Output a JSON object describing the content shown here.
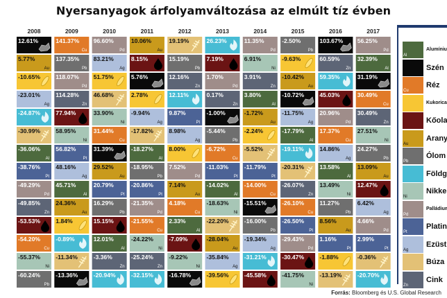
{
  "title": "Nyersanyagok árfolyamváltozása az elmúlt tíz évben",
  "source_label": "Forrás:",
  "source_text": "Bloomberg és U.S. Global Research",
  "commodities": {
    "Al": {
      "name": "Alumínium",
      "color": "#4d6a3e",
      "text": "#ffffff",
      "icon": "none"
    },
    "C": {
      "name": "Szén",
      "color": "#0a0a0a",
      "text": "#ffffff",
      "icon": "coal-icon"
    },
    "Cu": {
      "name": "Réz",
      "color": "#e17a28",
      "text": "#ffffff",
      "icon": "none"
    },
    "Co": {
      "name": "Kukorica",
      "color": "#f7c634",
      "text": "#111111",
      "icon": "corn-icon"
    },
    "Oil": {
      "name": "Kőolaj",
      "color": "#6b1414",
      "text": "#ffffff",
      "icon": "oil-drop-icon"
    },
    "Au": {
      "name": "Arany",
      "color": "#c99a1c",
      "text": "#111111",
      "icon": "none"
    },
    "Pb": {
      "name": "Ólom",
      "color": "#6f6f6f",
      "text": "#ffffff",
      "icon": "none"
    },
    "Gas": {
      "name": "Földgáz",
      "color": "#47bcd4",
      "text": "#ffffff",
      "icon": "flame-icon"
    },
    "Ni": {
      "name": "Nikkel",
      "color": "#a7c6b6",
      "text": "#111111",
      "icon": "none"
    },
    "Pd": {
      "name": "Palládium",
      "color": "#9f8d8a",
      "text": "#ffffff",
      "icon": "none"
    },
    "Pt": {
      "name": "Platina",
      "color": "#4c6396",
      "text": "#ffffff",
      "icon": "none"
    },
    "Ag": {
      "name": "Ezüst",
      "color": "#aebfdc",
      "text": "#111111",
      "icon": "none"
    },
    "W": {
      "name": "Búza",
      "color": "#e3c176",
      "text": "#111111",
      "icon": "wheat-icon"
    },
    "Zn": {
      "name": "Cink",
      "color": "#5d6576",
      "text": "#ffffff",
      "icon": "none"
    }
  },
  "legend_order": [
    "Al",
    "C",
    "Cu",
    "Co",
    "Oil",
    "Au",
    "Pb",
    "Gas",
    "Ni",
    "Pd",
    "Pt",
    "Ag",
    "W",
    "Zn"
  ],
  "chart_data": {
    "type": "table",
    "title": "Nyersanyagok árfolyamváltozása az elmúlt tíz évben",
    "years": [
      "2008",
      "2009",
      "2010",
      "2011",
      "2012",
      "2013",
      "2014",
      "2015",
      "2016",
      "2017"
    ],
    "columns": [
      {
        "year": "2008",
        "cells": [
          {
            "c": "C",
            "v": "12.61%"
          },
          {
            "c": "Au",
            "v": "5.77%"
          },
          {
            "c": "Co",
            "v": "-10.65%"
          },
          {
            "c": "Ag",
            "v": "-23.01%"
          },
          {
            "c": "Gas",
            "v": "-24.87%"
          },
          {
            "c": "W",
            "v": "-30.99%"
          },
          {
            "c": "Al",
            "v": "-36.06%"
          },
          {
            "c": "Pt",
            "v": "-38.76%"
          },
          {
            "c": "Pd",
            "v": "-49.29%"
          },
          {
            "c": "Zn",
            "v": "-49.85%"
          },
          {
            "c": "Oil",
            "v": "-53.53%"
          },
          {
            "c": "Cu",
            "v": "-54.20%"
          },
          {
            "c": "Ni",
            "v": "-55.37%"
          },
          {
            "c": "Pb",
            "v": "-60.24%"
          }
        ]
      },
      {
        "year": "2009",
        "cells": [
          {
            "c": "Cu",
            "v": "141.37%"
          },
          {
            "c": "Pb",
            "v": "137.35%"
          },
          {
            "c": "Pd",
            "v": "118.07%"
          },
          {
            "c": "Zn",
            "v": "114.28%"
          },
          {
            "c": "Oil",
            "v": "77.94%"
          },
          {
            "c": "Ni",
            "v": "58.95%"
          },
          {
            "c": "Pt",
            "v": "56.82%"
          },
          {
            "c": "Ag",
            "v": "48.16%"
          },
          {
            "c": "Al",
            "v": "45.71%"
          },
          {
            "c": "Au",
            "v": "24.36%"
          },
          {
            "c": "Co",
            "v": "1.84%"
          },
          {
            "c": "Gas",
            "v": "-0.89%"
          },
          {
            "c": "W",
            "v": "-11.34%"
          },
          {
            "c": "C",
            "v": "-13.36%"
          }
        ]
      },
      {
        "year": "2010",
        "cells": [
          {
            "c": "Pd",
            "v": "96.60%"
          },
          {
            "c": "Ag",
            "v": "83.21%"
          },
          {
            "c": "Co",
            "v": "51.75%"
          },
          {
            "c": "W",
            "v": "46.68%"
          },
          {
            "c": "Ni",
            "v": "33.90%"
          },
          {
            "c": "Cu",
            "v": "31.44%"
          },
          {
            "c": "C",
            "v": "31.39%"
          },
          {
            "c": "Au",
            "v": "29.52%"
          },
          {
            "c": "Pt",
            "v": "20.79%"
          },
          {
            "c": "Pb",
            "v": "16.29%"
          },
          {
            "c": "Oil",
            "v": "15.15%"
          },
          {
            "c": "Al",
            "v": "12.01%"
          },
          {
            "c": "Zn",
            "v": "-3.36%"
          },
          {
            "c": "Gas",
            "v": "-20.94%"
          }
        ]
      },
      {
        "year": "2011",
        "cells": [
          {
            "c": "Au",
            "v": "10.06%"
          },
          {
            "c": "Oil",
            "v": "8.15%"
          },
          {
            "c": "C",
            "v": "5.76%"
          },
          {
            "c": "Co",
            "v": "2.78%"
          },
          {
            "c": "Ag",
            "v": "-9.94%"
          },
          {
            "c": "W",
            "v": "-17.82%"
          },
          {
            "c": "Al",
            "v": "-18.27%"
          },
          {
            "c": "Pb",
            "v": "-18.95%"
          },
          {
            "c": "Pt",
            "v": "-20.86%"
          },
          {
            "c": "Pd",
            "v": "-21.35%"
          },
          {
            "c": "Cu",
            "v": "-21.55%"
          },
          {
            "c": "Ni",
            "v": "-24.22%"
          },
          {
            "c": "Zn",
            "v": "-25.24%"
          },
          {
            "c": "Gas",
            "v": "-32.15%"
          }
        ]
      },
      {
        "year": "2012",
        "cells": [
          {
            "c": "W",
            "v": "19.19%"
          },
          {
            "c": "Pb",
            "v": "15.19%"
          },
          {
            "c": "Zn",
            "v": "12.16%"
          },
          {
            "c": "Gas",
            "v": "12.11%"
          },
          {
            "c": "Pt",
            "v": "9.87%"
          },
          {
            "c": "Ag",
            "v": "8.98%"
          },
          {
            "c": "Co",
            "v": "8.00%"
          },
          {
            "c": "Pd",
            "v": "7.52%"
          },
          {
            "c": "Au",
            "v": "7.14%"
          },
          {
            "c": "Cu",
            "v": "4.18%"
          },
          {
            "c": "Al",
            "v": "2.33%"
          },
          {
            "c": "Oil",
            "v": "-7.09%"
          },
          {
            "c": "Ni",
            "v": "-9.22%"
          },
          {
            "c": "C",
            "v": "-16.78%"
          }
        ]
      },
      {
        "year": "2013",
        "cells": [
          {
            "c": "Gas",
            "v": "26.23%"
          },
          {
            "c": "Oil",
            "v": "7.19%"
          },
          {
            "c": "Pd",
            "v": "1.70%"
          },
          {
            "c": "Zn",
            "v": "0.17%"
          },
          {
            "c": "C",
            "v": "-1.00%"
          },
          {
            "c": "Pb",
            "v": "-5.44%"
          },
          {
            "c": "Cu",
            "v": "-6.72%"
          },
          {
            "c": "Pt",
            "v": "-11.03%"
          },
          {
            "c": "Al",
            "v": "-14.02%"
          },
          {
            "c": "Ni",
            "v": "-18.63%"
          },
          {
            "c": "W",
            "v": "-22.20%"
          },
          {
            "c": "Au",
            "v": "-28.04%"
          },
          {
            "c": "Ag",
            "v": "-35.84%"
          },
          {
            "c": "Co",
            "v": "-39.56%"
          }
        ]
      },
      {
        "year": "2014",
        "cells": [
          {
            "c": "Pd",
            "v": "11.35%"
          },
          {
            "c": "Ni",
            "v": "6.91%"
          },
          {
            "c": "Zn",
            "v": "3.91%"
          },
          {
            "c": "Al",
            "v": "3.80%"
          },
          {
            "c": "Au",
            "v": "-1.72%"
          },
          {
            "c": "Co",
            "v": "-2.24%"
          },
          {
            "c": "W",
            "v": "-5.52%"
          },
          {
            "c": "Pt",
            "v": "-11.79%"
          },
          {
            "c": "Cu",
            "v": "-14.00%"
          },
          {
            "c": "C",
            "v": "-15.51%"
          },
          {
            "c": "Pb",
            "v": "-16.00%"
          },
          {
            "c": "Ag",
            "v": "-19.34%"
          },
          {
            "c": "Gas",
            "v": "-31.21%"
          },
          {
            "c": "Oil",
            "v": "-45.58%"
          }
        ]
      },
      {
        "year": "2015",
        "cells": [
          {
            "c": "Pb",
            "v": "-2.50%"
          },
          {
            "c": "Co",
            "v": "-9.63%"
          },
          {
            "c": "Au",
            "v": "-10.42%"
          },
          {
            "c": "C",
            "v": "-10.72%"
          },
          {
            "c": "Ag",
            "v": "-11.75%"
          },
          {
            "c": "Al",
            "v": "-17.79%"
          },
          {
            "c": "Gas",
            "v": "-19.11%"
          },
          {
            "c": "W",
            "v": "-20.31%"
          },
          {
            "c": "Zn",
            "v": "-26.07%"
          },
          {
            "c": "Cu",
            "v": "-26.10%"
          },
          {
            "c": "Pt",
            "v": "-26.50%"
          },
          {
            "c": "Pd",
            "v": "-29.43%"
          },
          {
            "c": "Oil",
            "v": "-30.47%"
          },
          {
            "c": "Ni",
            "v": "-41.75%"
          }
        ]
      },
      {
        "year": "2016",
        "cells": [
          {
            "c": "C",
            "v": "103.67%"
          },
          {
            "c": "Zn",
            "v": "60.59%"
          },
          {
            "c": "Gas",
            "v": "59.35%"
          },
          {
            "c": "Oil",
            "v": "45.03%"
          },
          {
            "c": "Pd",
            "v": "20.96%"
          },
          {
            "c": "Cu",
            "v": "17.37%"
          },
          {
            "c": "Ag",
            "v": "14.86%"
          },
          {
            "c": "Al",
            "v": "13.58%"
          },
          {
            "c": "Ni",
            "v": "13.49%"
          },
          {
            "c": "Pb",
            "v": "11.27%"
          },
          {
            "c": "Au",
            "v": "8.56%"
          },
          {
            "c": "Pt",
            "v": "1.16%"
          },
          {
            "c": "Co",
            "v": "-1.88%"
          },
          {
            "c": "W",
            "v": "-13.19%"
          }
        ]
      },
      {
        "year": "2017",
        "cells": [
          {
            "c": "Pd",
            "v": "56.25%"
          },
          {
            "c": "Al",
            "v": "32.39%"
          },
          {
            "c": "C",
            "v": "31.19%"
          },
          {
            "c": "Cu",
            "v": "30.49%"
          },
          {
            "c": "Zn",
            "v": "30.49%"
          },
          {
            "c": "Ni",
            "v": "27.51%"
          },
          {
            "c": "Pb",
            "v": "24.27%"
          },
          {
            "c": "Au",
            "v": "13.09%"
          },
          {
            "c": "Oil",
            "v": "12.47%"
          },
          {
            "c": "Ag",
            "v": "6.42%"
          },
          {
            "c": "Pd2",
            "v": "4.66%"
          },
          {
            "c": "Pt",
            "v": "2.99%"
          },
          {
            "c": "W",
            "v": "-0.36%"
          },
          {
            "c": "Gas",
            "v": "-20.70%"
          }
        ]
      }
    ]
  }
}
